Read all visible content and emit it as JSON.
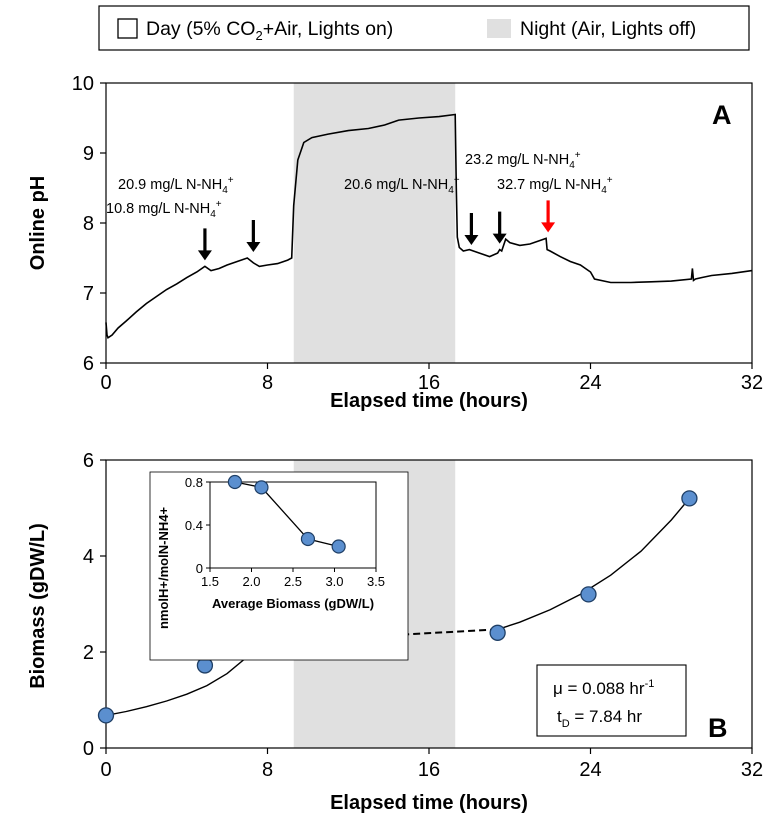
{
  "legend": {
    "day_prefix": "Day (5% CO",
    "day_sub": "2",
    "day_suffix": "+Air, Lights on)",
    "night": "Night (Air, Lights off)"
  },
  "chart_data": [
    {
      "type": "line",
      "panel": "A",
      "xlabel": "Elapsed time (hours)",
      "ylabel": "Online pH",
      "xlim": [
        0,
        32
      ],
      "ylim": [
        6,
        10
      ],
      "xticks": [
        "0",
        "8",
        "16",
        "24",
        "32"
      ],
      "yticks": [
        "6",
        "7",
        "8",
        "9",
        "10"
      ],
      "night_band": [
        9.3,
        17.3
      ],
      "series": [
        {
          "x": [
            0,
            0.05,
            0.1,
            0.3,
            0.6,
            1,
            1.5,
            2,
            2.5,
            3,
            3.5,
            4,
            4.5,
            4.9,
            5.2,
            5.6,
            6,
            6.5,
            7,
            7.3,
            7.6,
            8,
            8.5,
            9,
            9.2,
            9.3,
            9.5,
            9.8,
            10.2,
            11,
            12,
            13,
            13.8,
            14.5,
            15.5,
            16.5,
            17.3,
            17.35,
            17.4,
            17.5,
            17.7,
            18,
            18.2,
            18.5,
            19,
            19.4,
            19.5,
            19.6,
            19.8,
            20,
            20.5,
            21,
            21.5,
            21.8,
            21.85,
            22,
            22.5,
            23,
            23.5,
            24,
            24.2,
            25,
            26,
            27,
            28,
            29,
            29.05,
            29.1,
            29.2,
            29.5,
            30,
            31,
            32
          ],
          "y": [
            6.58,
            6.4,
            6.36,
            6.4,
            6.5,
            6.6,
            6.73,
            6.85,
            6.95,
            7.05,
            7.13,
            7.22,
            7.3,
            7.38,
            7.32,
            7.35,
            7.4,
            7.45,
            7.5,
            7.43,
            7.38,
            7.4,
            7.42,
            7.47,
            7.5,
            8.25,
            8.9,
            9.15,
            9.22,
            9.27,
            9.32,
            9.35,
            9.4,
            9.47,
            9.5,
            9.52,
            9.55,
            8.5,
            7.8,
            7.65,
            7.6,
            7.62,
            7.6,
            7.57,
            7.52,
            7.57,
            7.62,
            7.6,
            7.77,
            7.72,
            7.68,
            7.7,
            7.75,
            7.78,
            7.62,
            7.6,
            7.52,
            7.45,
            7.4,
            7.3,
            7.2,
            7.15,
            7.15,
            7.16,
            7.17,
            7.2,
            7.35,
            7.18,
            7.2,
            7.22,
            7.25,
            7.28,
            7.32
          ]
        }
      ],
      "annotations": [
        {
          "label": "10.8 mg/L N-NH",
          "sub": "4",
          "sup": "+",
          "arrow_x": 4.9,
          "arrow_y": 7.38,
          "color": "#000000"
        },
        {
          "label": "20.9 mg/L N-NH",
          "sub": "4",
          "sup": "+",
          "arrow_x": 7.3,
          "arrow_y": 7.5,
          "color": "#000000"
        },
        {
          "label": "20.6 mg/L N-NH",
          "sub": "4",
          "sup": "+",
          "arrow_x": 18.1,
          "arrow_y": 7.6,
          "color": "#000000"
        },
        {
          "label": "23.2 mg/L N-NH",
          "sub": "4",
          "sup": "+",
          "arrow_x": 19.5,
          "arrow_y": 7.62,
          "color": "#000000"
        },
        {
          "label": "32.7 mg/L N-NH",
          "sub": "4",
          "sup": "+",
          "arrow_x": 21.9,
          "arrow_y": 7.78,
          "color": "#ff0000"
        }
      ]
    },
    {
      "type": "scatter",
      "panel": "B",
      "xlabel": "Elapsed time (hours)",
      "ylabel": "Biomass (gDW/L)",
      "xlim": [
        0,
        32
      ],
      "ylim": [
        0,
        6
      ],
      "xticks": [
        "0",
        "8",
        "16",
        "24",
        "32"
      ],
      "yticks": [
        "0",
        "2",
        "4",
        "6"
      ],
      "night_band": [
        9.3,
        17.3
      ],
      "points": {
        "x": [
          0,
          4.9,
          7.6,
          19.4,
          23.9,
          28.9
        ],
        "y": [
          0.68,
          1.72,
          2.04,
          2.4,
          3.2,
          5.2
        ]
      },
      "fit_day1": {
        "x": [
          0,
          1,
          2,
          3,
          4,
          5,
          6,
          7,
          7.6
        ],
        "y": [
          0.68,
          0.76,
          0.86,
          0.98,
          1.12,
          1.3,
          1.55,
          1.9,
          2.2
        ]
      },
      "night_dashed": {
        "x": [
          7.6,
          19.4
        ],
        "y": [
          2.2,
          2.47
        ]
      },
      "fit_day2": {
        "x": [
          19.4,
          20.5,
          22,
          23.5,
          25,
          26.5,
          28,
          29
        ],
        "y": [
          2.47,
          2.62,
          2.88,
          3.2,
          3.6,
          4.1,
          4.75,
          5.25
        ]
      },
      "stats": {
        "mu_prefix": "μ = 0.088 hr",
        "mu_sup": "-1",
        "td_prefix": "t",
        "td_sub": "D",
        "td_suffix": " = 7.84 hr"
      },
      "inset": {
        "type": "scatter",
        "xlabel": "Average Biomass (gDW/L)",
        "ylabel": "nmolH+/molN-NH4+",
        "xlim": [
          1.5,
          3.5
        ],
        "ylim": [
          0,
          0.8
        ],
        "xticks": [
          "1.5",
          "2.0",
          "2.5",
          "3.0",
          "3.5"
        ],
        "yticks": [
          "0",
          "0.4",
          "0.8"
        ],
        "x": [
          1.8,
          2.12,
          2.68,
          3.05
        ],
        "y": [
          0.8,
          0.75,
          0.27,
          0.2
        ]
      }
    }
  ]
}
